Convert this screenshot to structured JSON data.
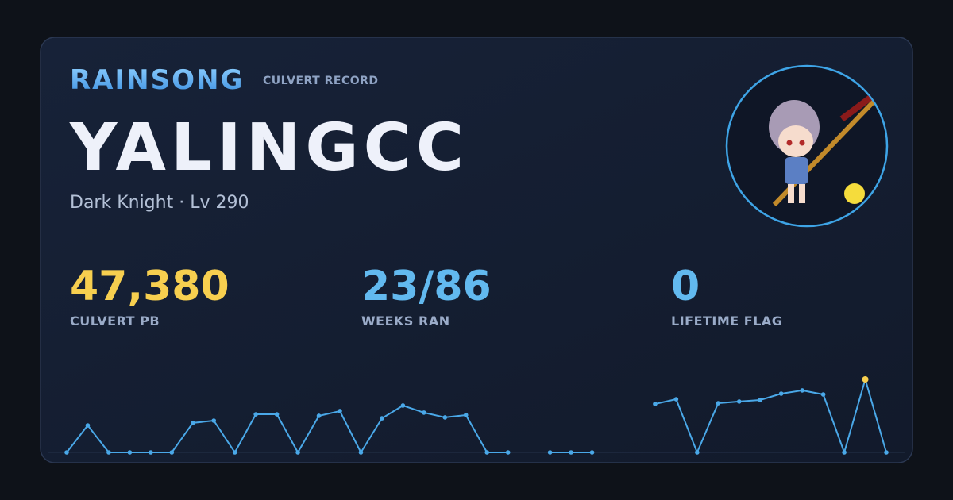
{
  "header": {
    "brand": "RAINSONG",
    "subtitle": "CULVERT RECORD"
  },
  "player": {
    "name": "YALINGCC",
    "class_level": "Dark Knight · Lv 290"
  },
  "stats": [
    {
      "value": "47,380",
      "label": "CULVERT PB",
      "color": "#f7cf4f"
    },
    {
      "value": "23/86",
      "label": "WEEKS RAN",
      "color": "#62b9ef"
    },
    {
      "value": "0",
      "label": "LIFETIME FLAG",
      "color": "#62b9ef"
    }
  ],
  "chart_data": {
    "type": "line",
    "color": "#4aa8e8",
    "highlight_color": "#f7cf4f",
    "ylim": [
      0,
      47380
    ],
    "values": [
      0,
      17500,
      0,
      0,
      0,
      0,
      19100,
      20600,
      0,
      24700,
      24700,
      0,
      23700,
      26800,
      0,
      22100,
      30400,
      25800,
      22700,
      24200,
      0,
      0,
      null,
      0,
      0,
      0,
      null,
      null,
      31400,
      34500,
      0,
      31900,
      33000,
      34000,
      38100,
      40200,
      37600,
      0,
      47380,
      0
    ]
  }
}
